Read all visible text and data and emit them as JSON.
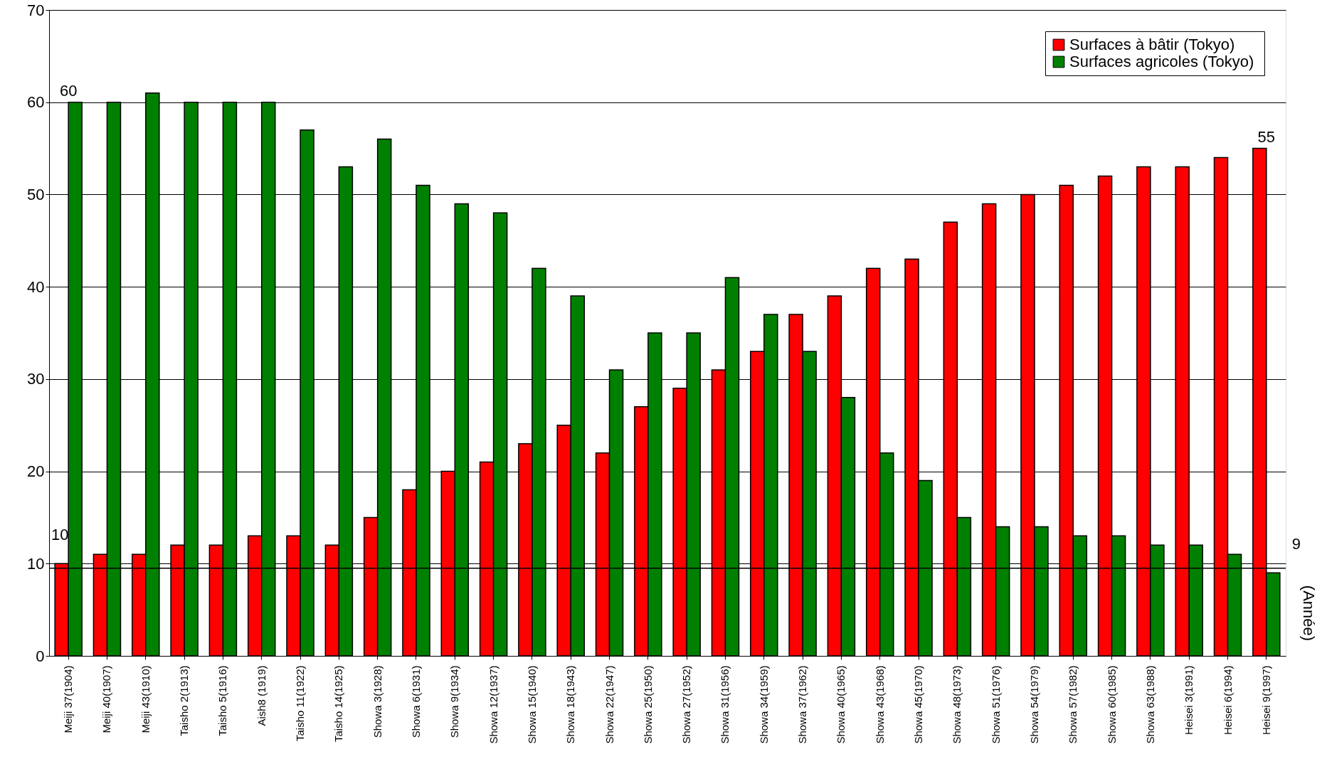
{
  "chart_data": {
    "type": "bar",
    "categories": [
      "Meiji 37(1904)",
      "Meiji 40(1907)",
      "Meiji 43(1910)",
      "Taisho 2(1913)",
      "Taisho 5(1916)",
      "Aish8 (1919)",
      "Taisho 11(1922)",
      "Taisho 14(1925)",
      "Showa 3(1928)",
      "Showa 6(1931)",
      "Showa 9(1934)",
      "Showa 12(1937)",
      "Showa 15(1940)",
      "Showa 18(1943)",
      "Showa 22(1947)",
      "Showa 25(1950)",
      "Showa 27(1952)",
      "Showa 31(1956)",
      "Showa 34(1959)",
      "Showa 37(1962)",
      "Showa 40(1965)",
      "Showa 43(1968)",
      "Showa 45(1970)",
      "Showa 48(1973)",
      "Showa 51(1976)",
      "Showa 54(1979)",
      "Showa 57(1982)",
      "Showa 60(1985)",
      "Showa 63(1988)",
      "Heisei 3(1991)",
      "Heisei 6(1994)",
      "Heisei 9(1997)"
    ],
    "series": [
      {
        "name": "Surfaces à bâtir (Tokyo)",
        "color": "#ff0000",
        "values": [
          10,
          11,
          11,
          12,
          12,
          13,
          13,
          12,
          15,
          18,
          20,
          21,
          23,
          25,
          22,
          27,
          29,
          31,
          33,
          37,
          39,
          42,
          43,
          47,
          49,
          50,
          51,
          52,
          53,
          53,
          54,
          55
        ]
      },
      {
        "name": "Surfaces agricoles  (Tokyo)",
        "color": "#008000",
        "values": [
          60,
          60,
          61,
          60,
          60,
          60,
          57,
          53,
          56,
          51,
          49,
          48,
          42,
          39,
          31,
          35,
          35,
          41,
          37,
          33,
          28,
          22,
          19,
          15,
          14,
          14,
          13,
          13,
          12,
          12,
          11,
          9
        ]
      }
    ],
    "ylim": [
      0,
      70
    ],
    "yticks": [
      0,
      10,
      20,
      30,
      40,
      50,
      60,
      70
    ],
    "grid": "y",
    "legend": "top right",
    "ref_lines": [
      {
        "axis": "y",
        "value": 9.5,
        "color": "#000000"
      }
    ],
    "annotations": [
      {
        "text": "60",
        "x": "Meiji 37(1904)",
        "y": 60
      },
      {
        "text": "55",
        "x": "Heisei 9(1997)",
        "y": 55
      },
      {
        "text": "10",
        "x": "Meiji 37(1904)",
        "y": 10
      },
      {
        "text": "9",
        "x": "Heisei 9(1997)",
        "y": 9
      },
      "(Année)"
    ]
  }
}
